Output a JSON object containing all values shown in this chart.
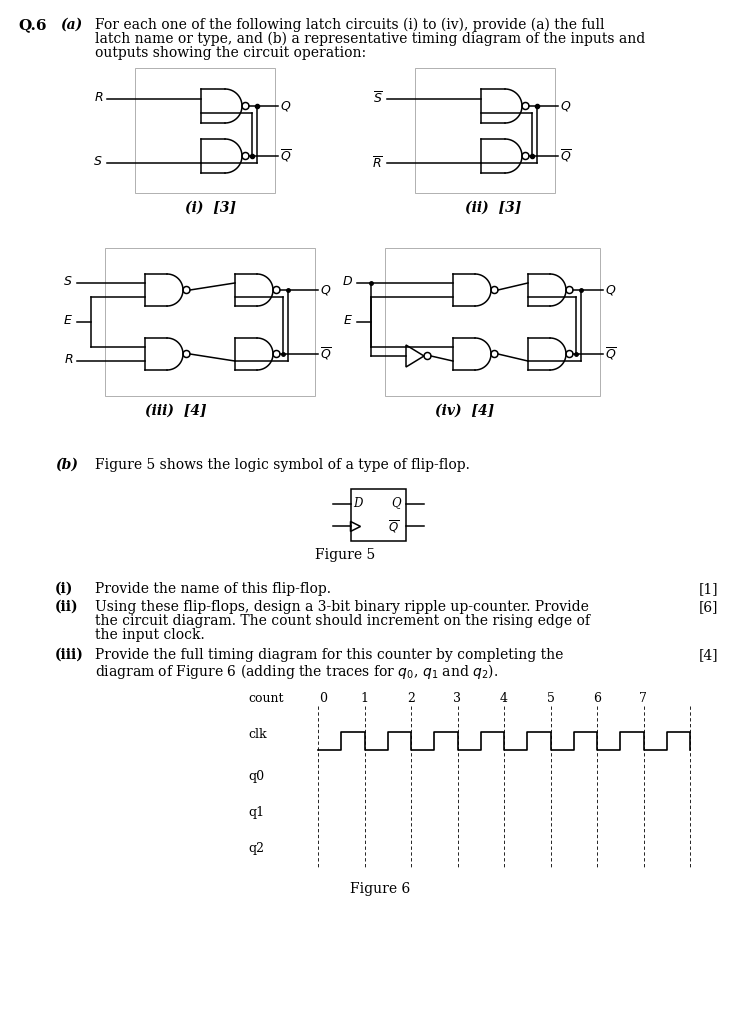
{
  "background": "#ffffff",
  "text_color": "#000000",
  "count_labels": [
    "0",
    "1",
    "2",
    "3",
    "4",
    "5",
    "6",
    "7"
  ],
  "header_q6": "Q.6",
  "header_a": "(a)",
  "header_a_text_line1": "For each one of the following latch circuits (i) to (iv), provide (a) the full",
  "header_a_text_line2": "latch name or type, and (b) a representative timing diagram of the inputs and",
  "header_a_text_line3": "outputs showing the circuit operation:",
  "header_b": "(b)",
  "header_b_text": "Figure 5 shows the logic symbol of a type of flip-flop.",
  "bi_label": "(i)",
  "bi_text": "Provide the name of this flip-flop.",
  "bi_mark": "[1]",
  "bii_label": "(ii)",
  "bii_text_line1": "Using these flip-flops, design a 3-bit binary ripple up-counter. Provide",
  "bii_text_line2": "the circuit diagram. The count should increment on the rising edge of",
  "bii_text_line3": "the input clock.",
  "bii_mark": "[6]",
  "biii_label": "(iii)",
  "biii_text_line1": "Provide the full timing diagram for this counter by completing the",
  "biii_text_line2": "diagram of Figure 6 (adding the traces for $q_0$, $q_1$ and $q_2$).",
  "biii_mark": "[4]",
  "fig5_caption": "Figure 5",
  "fig6_caption": "Figure 6"
}
